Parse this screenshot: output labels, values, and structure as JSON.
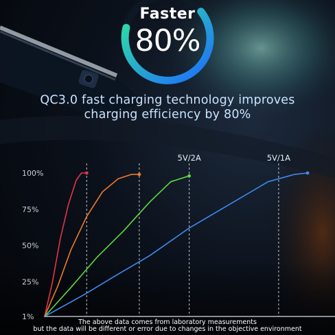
{
  "badge": {
    "title": "Faster",
    "value": "80%",
    "ring_start_color": "#2fe3a0",
    "ring_end_color": "#1e6bff"
  },
  "headline": {
    "line1": "QC3.0 fast charging technology improves",
    "line2": "charging efficiency by 80%"
  },
  "footnote": {
    "line1": "The above data comes from laboratory measurements",
    "line2": "but the data will be different or error due to changes in the objective environment"
  },
  "chart_data": {
    "type": "line",
    "title": "",
    "xlabel": "",
    "ylabel": "",
    "ytick_labels": [
      "1%",
      "25%",
      "50%",
      "75%",
      "100%"
    ],
    "ytick_values": [
      1,
      25,
      50,
      75,
      100
    ],
    "ylim": [
      1,
      100
    ],
    "xlim": [
      0,
      100
    ],
    "grid": false,
    "annotations": [
      {
        "text": "5V/2A",
        "x": 55
      },
      {
        "text": "5V/1A",
        "x": 89
      }
    ],
    "markers_x": [
      16,
      36,
      55,
      89
    ],
    "series": [
      {
        "color": "#e8334a",
        "x": [
          0,
          3,
          6,
          9,
          12,
          14,
          16
        ],
        "y": [
          1,
          25,
          55,
          78,
          95,
          100,
          100
        ]
      },
      {
        "color": "#f07a2a",
        "x": [
          0,
          5,
          10,
          16,
          22,
          28,
          33,
          36
        ],
        "y": [
          1,
          22,
          47,
          70,
          87,
          96,
          99,
          99
        ]
      },
      {
        "color": "#5edc3e",
        "x": [
          0,
          10,
          20,
          30,
          40,
          48,
          55
        ],
        "y": [
          1,
          21,
          42,
          60,
          80,
          94,
          98
        ]
      },
      {
        "color": "#3b8cf2",
        "x": [
          0,
          15,
          25,
          40,
          55,
          70,
          85,
          95,
          100
        ],
        "y": [
          1,
          16,
          27,
          43,
          62,
          78,
          94,
          99,
          100
        ]
      }
    ]
  }
}
